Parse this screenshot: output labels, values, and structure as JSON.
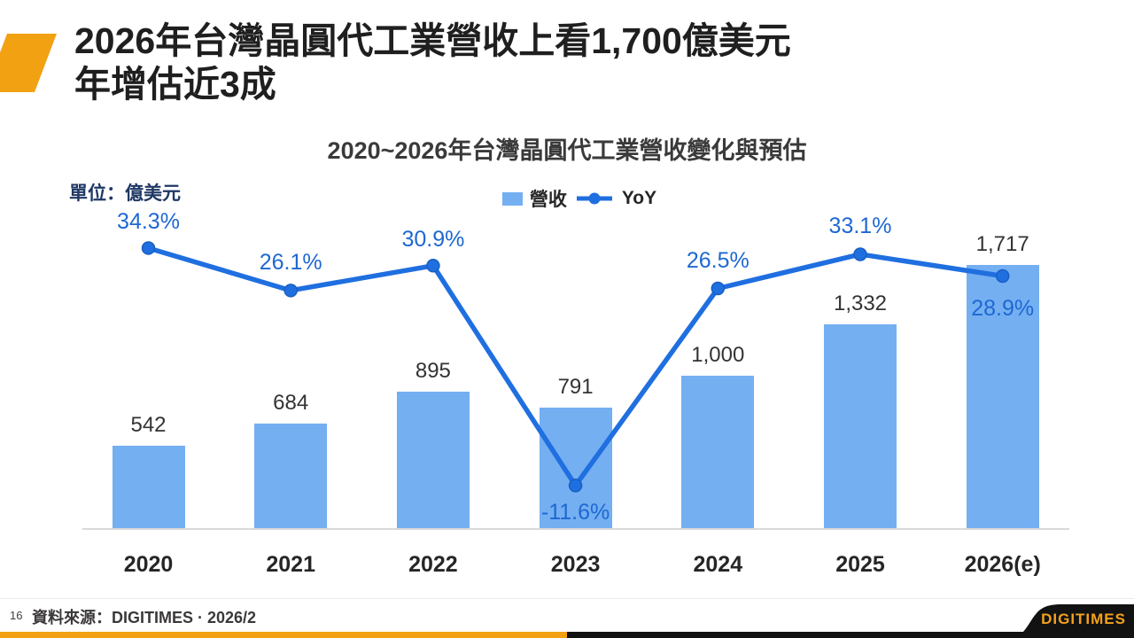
{
  "slide": {
    "title_line1": "2026年台灣晶圓代工業營收上看1,700億美元",
    "title_line2": "年增估近3成",
    "page_number": "16",
    "source_text": "資料來源：DIGITIMES · 2026/2",
    "logo_text": "DIGITIMES"
  },
  "colors": {
    "accent_orange": "#F2A113",
    "bar_blue": "#74AFF2",
    "line_blue": "#1F6FE0",
    "marker_stroke_blue": "#1A5FC0",
    "yoy_label_blue": "#1E68D2",
    "unit_navy": "#1F3864",
    "logo_black": "#121212",
    "logo_orange": "#F5A11C"
  },
  "chart_data": {
    "type": "bar+line combo",
    "title": "2020~2026年台灣晶圓代工業營收變化與預估",
    "unit_label": "單位：億美元",
    "categories": [
      "2020",
      "2021",
      "2022",
      "2023",
      "2024",
      "2025",
      "2026(e)"
    ],
    "series": [
      {
        "name": "營收",
        "type": "bar",
        "values": [
          542,
          684,
          895,
          791,
          1000,
          1332,
          1717
        ],
        "labels": [
          "542",
          "684",
          "895",
          "791",
          "1,000",
          "1,332",
          "1,717"
        ]
      },
      {
        "name": "YoY",
        "type": "line",
        "values": [
          34.3,
          26.1,
          30.9,
          -11.6,
          26.5,
          33.1,
          28.9
        ],
        "labels": [
          "34.3%",
          "26.1%",
          "30.9%",
          "-11.6%",
          "26.5%",
          "33.1%",
          "28.9%"
        ]
      }
    ],
    "legend_position": "top",
    "grid": "off",
    "value_axis_visible": false,
    "ylim_bar": [
      0,
      2000
    ],
    "ylim_yoy": [
      -20,
      40
    ]
  }
}
